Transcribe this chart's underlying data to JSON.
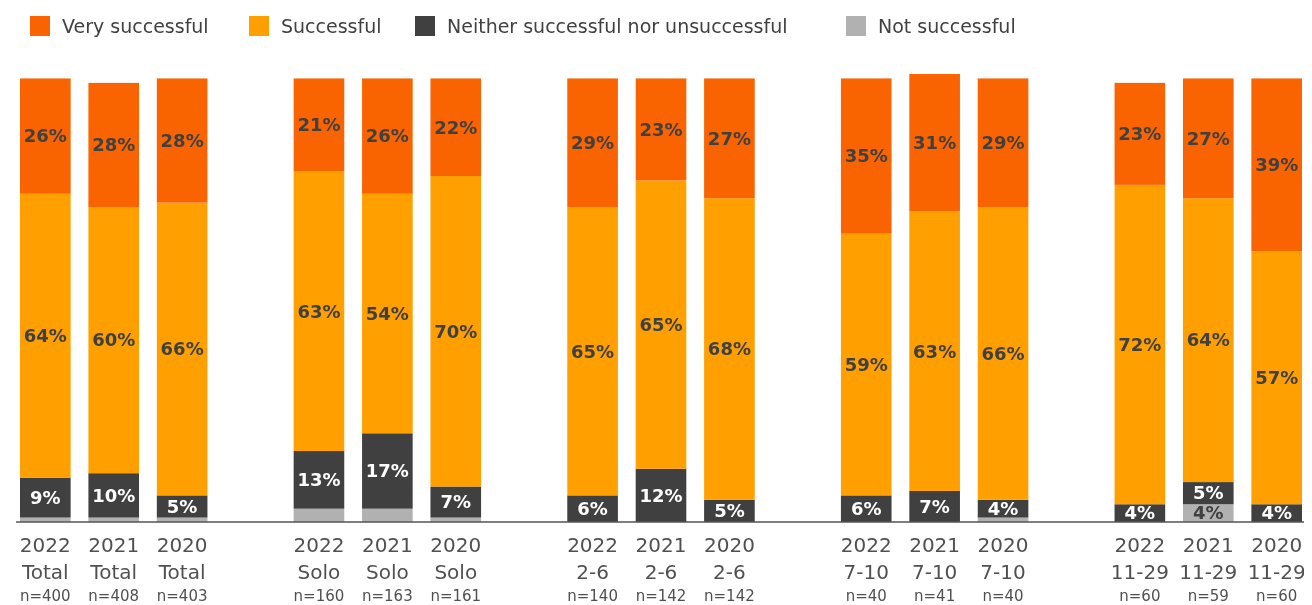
{
  "chart_data": {
    "type": "bar",
    "stacked": true,
    "legend": "top",
    "data_labels": false,
    "categories": [
      "2022\nTotal\nn=400",
      "2021\nTotal\nn=408",
      "2020\nTotal\nn=403",
      null,
      "2022\nSolo\nn=160",
      "2021\nSolo\nn=163",
      "2020\nSolo\nn=161",
      null,
      "2022\n2-6\nn=140",
      "2021\n2-6\nn=142",
      "2020\n2-6\nn=142",
      null,
      "2022\n7-10\nn=40",
      "2021\n7-10\nn=41",
      "2020\n7-10\nn=40",
      null,
      "2022\n11-29\nn=60",
      "2021\n11-29\nn=59",
      "2020\n11-29\nn=60"
    ],
    "series": [
      {
        "name": "Not successful",
        "color": "#b1b1b1",
        "values": [
          1,
          1,
          1,
          null,
          3,
          3,
          1,
          null,
          0,
          0,
          0,
          null,
          0,
          0,
          1,
          null,
          0,
          4,
          0
        ],
        "value_labels": [
          null,
          null,
          null,
          null,
          null,
          null,
          null,
          null,
          null,
          null,
          null,
          null,
          null,
          null,
          null,
          null,
          null,
          "4%",
          null
        ]
      },
      {
        "name": "Neither successful nor unsuccessful",
        "color": "#404040",
        "values": [
          9,
          10,
          5,
          null,
          13,
          17,
          7,
          null,
          6,
          12,
          5,
          null,
          6,
          7,
          4,
          null,
          4,
          5,
          4
        ],
        "value_labels": [
          "9%",
          "10%",
          "5%",
          null,
          "13%",
          "17%",
          "7%",
          null,
          "6%",
          "12%",
          "5%",
          null,
          "6%",
          "7%",
          "4%",
          null,
          "4%",
          "5%",
          "4%"
        ]
      },
      {
        "name": "Successful",
        "color": "#ffa000",
        "values": [
          64,
          60,
          66,
          null,
          63,
          54,
          70,
          null,
          65,
          65,
          68,
          null,
          59,
          63,
          66,
          null,
          72,
          64,
          57
        ],
        "value_labels": [
          "64%",
          "60%",
          "66%",
          null,
          "63%",
          "54%",
          "70%",
          null,
          "65%",
          "65%",
          "68%",
          null,
          "59%",
          "63%",
          "66%",
          null,
          "72%",
          "64%",
          "57%"
        ]
      },
      {
        "name": "Very successful",
        "color": "#fa6400",
        "values": [
          26,
          28,
          28,
          null,
          21,
          26,
          22,
          null,
          29,
          23,
          27,
          null,
          35,
          31,
          29,
          null,
          23,
          27,
          39
        ],
        "value_labels": [
          "26%",
          "28%",
          "28%",
          null,
          "21%",
          "26%",
          "22%",
          null,
          "29%",
          "23%",
          "27%",
          null,
          "35%",
          "31%",
          "29%",
          null,
          "23%",
          "27%",
          "39%"
        ]
      }
    ]
  }
}
